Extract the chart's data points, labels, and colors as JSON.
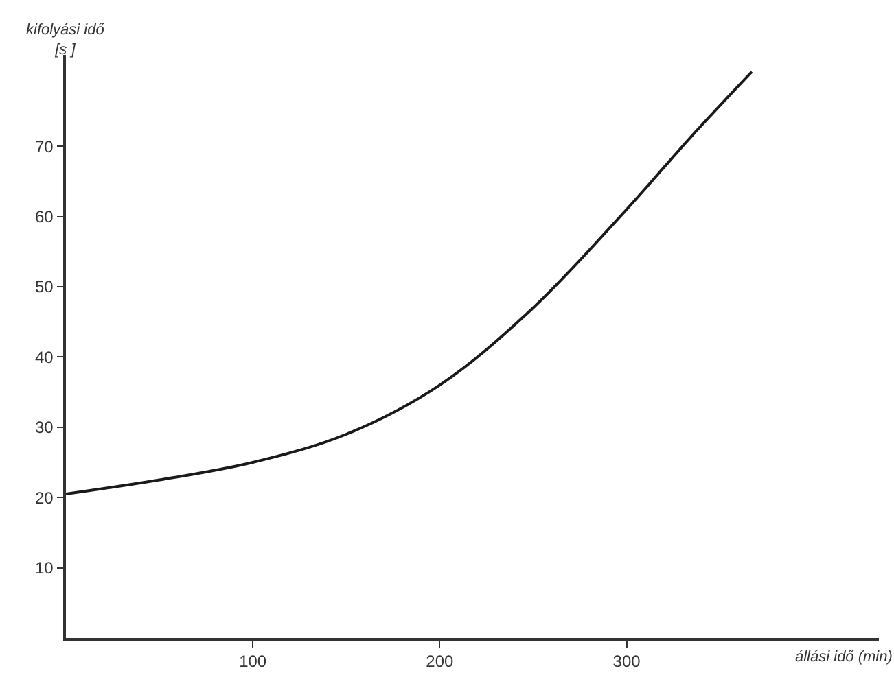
{
  "chart_data": {
    "type": "line",
    "xlabel": "állási idő (min)",
    "ylabel": "kifolyási idő\n[s ]",
    "x": [
      0,
      50,
      100,
      150,
      200,
      250,
      300,
      335,
      367
    ],
    "series": [
      {
        "color": "#1a1a1a",
        "values": [
          20.5,
          22.5,
          25,
          29,
          36,
          47,
          61,
          71.5,
          80.6
        ]
      }
    ],
    "xlim": [
      0,
      435
    ],
    "ylim": [
      0,
      83
    ],
    "xticks": [
      100,
      200,
      300
    ],
    "yticks": [
      10,
      20,
      30,
      40,
      50,
      60,
      70
    ],
    "legend": false,
    "marker": "none",
    "line_style": "solid"
  }
}
